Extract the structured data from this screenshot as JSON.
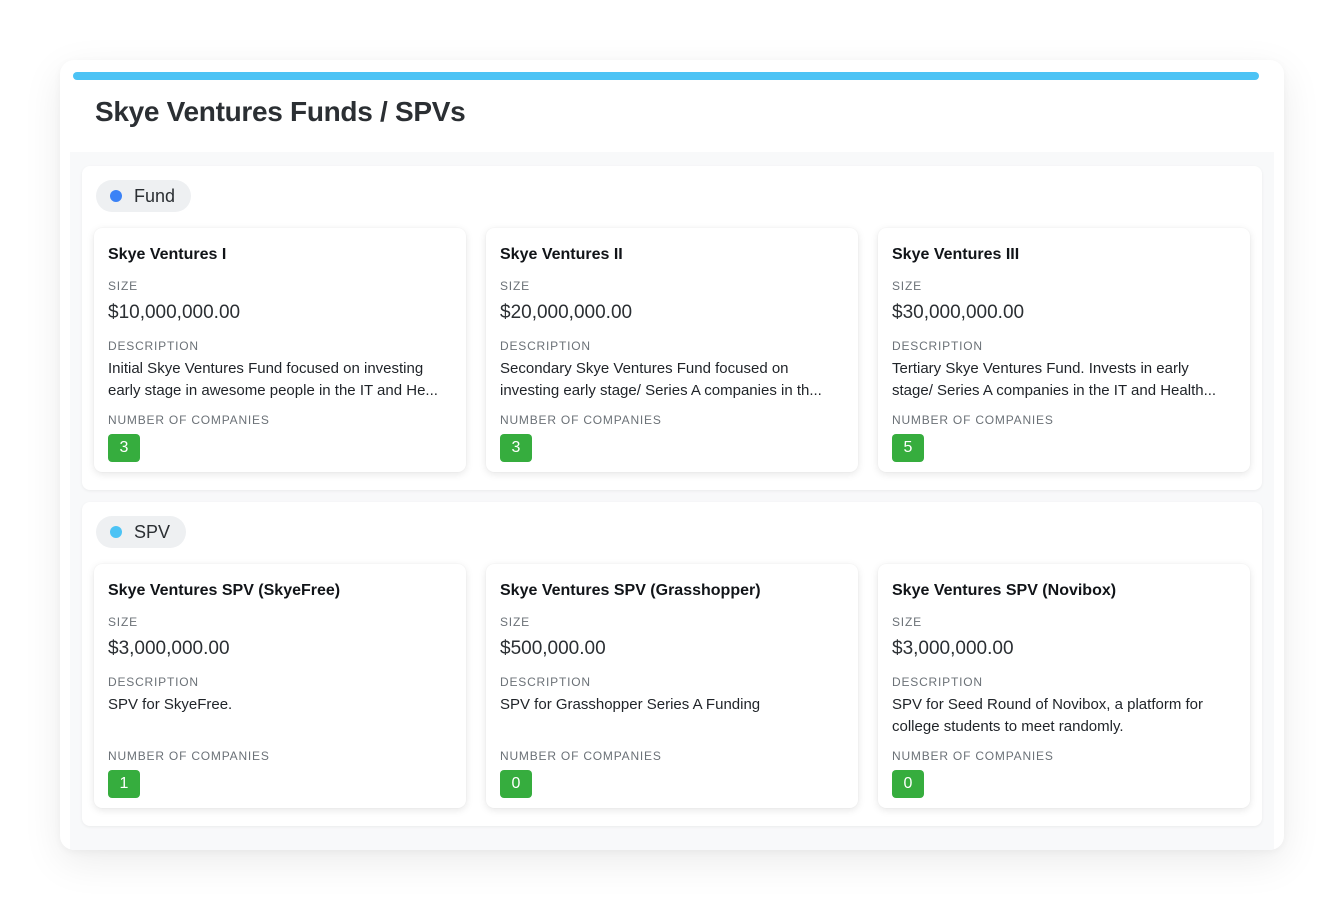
{
  "page": {
    "title": "Skye Ventures Funds / SPVs",
    "accent_color": "#4cc3f5"
  },
  "labels": {
    "size": "SIZE",
    "description": "DESCRIPTION",
    "count": "NUMBER OF COMPANIES"
  },
  "groups": [
    {
      "name": "Fund",
      "dot_color": "#3b82f6",
      "cards": [
        {
          "title": "Skye Ventures I",
          "size": "$10,000,000.00",
          "desc1": "Initial Skye Ventures Fund focused on investing",
          "desc2": "early stage in awesome people in the IT and He...",
          "count": "3"
        },
        {
          "title": "Skye Ventures II",
          "size": "$20,000,000.00",
          "desc1": "Secondary Skye Ventures Fund focused on",
          "desc2": "investing early stage/ Series A companies in th...",
          "count": "3"
        },
        {
          "title": "Skye Ventures III",
          "size": "$30,000,000.00",
          "desc1": "Tertiary Skye Ventures Fund. Invests in early",
          "desc2": "stage/ Series A companies in the IT and Health...",
          "count": "5"
        }
      ]
    },
    {
      "name": "SPV",
      "dot_color": "#4cc3f5",
      "cards": [
        {
          "title": "Skye Ventures SPV (SkyeFree)",
          "size": "$3,000,000.00",
          "desc1": "SPV for SkyeFree.",
          "desc2": "",
          "count": "1"
        },
        {
          "title": "Skye Ventures SPV (Grasshopper)",
          "size": "$500,000.00",
          "desc1": "SPV for Grasshopper Series A Funding",
          "desc2": "",
          "count": "0"
        },
        {
          "title": "Skye Ventures SPV (Novibox)",
          "size": "$3,000,000.00",
          "desc1": "SPV for Seed Round of Novibox, a platform for",
          "desc2": "college students to meet randomly.",
          "count": "0"
        }
      ]
    }
  ]
}
